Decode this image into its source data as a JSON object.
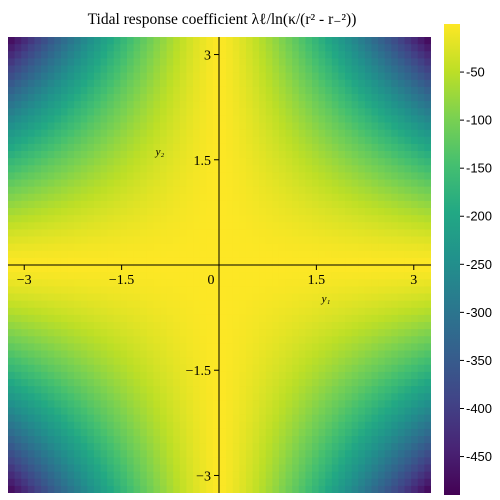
{
  "chart_data": {
    "type": "heatmap",
    "title": "Tidal response coefficient λℓ/ln(κ/(r² - r₋²))",
    "xlabel": "y₁",
    "ylabel": "y₂",
    "xlim": [
      -3.25,
      3.25
    ],
    "ylim": [
      -3.25,
      3.25
    ],
    "x_ticks": [
      -3,
      -1.5,
      0,
      1.5,
      3
    ],
    "x_tick_labels": [
      "−3",
      "−1.5",
      "0",
      "1.5",
      "3"
    ],
    "y_ticks": [
      3,
      1.5,
      -1.5,
      -3
    ],
    "y_tick_labels": [
      "3",
      "1.5",
      "−1.5",
      "−3"
    ],
    "colorbar": {
      "colormap": "viridis",
      "range": [
        -490,
        0
      ],
      "ticks": [
        -50,
        -100,
        -150,
        -200,
        -250,
        -300,
        -350,
        -400,
        -450
      ],
      "tick_labels": [
        "-50",
        "-100",
        "-150",
        "-200",
        "-250",
        "-300",
        "-350",
        "-400",
        "-450"
      ]
    },
    "field_description": "symmetric in y1 and y2; near 0 along both axes, decreasing toward about -490 at the four corners",
    "sampled_values": [
      {
        "y1": 0,
        "y2": 0,
        "value": 0
      },
      {
        "y1": 1.5,
        "y2": 1.5,
        "value": -50
      },
      {
        "y1": 3,
        "y2": 0,
        "value": -30
      },
      {
        "y1": 3,
        "y2": 1.5,
        "value": -100
      },
      {
        "y1": 3,
        "y2": 3,
        "value": -420
      },
      {
        "y1": 3.25,
        "y2": 3.25,
        "value": -490
      },
      {
        "y1": -3.25,
        "y2": 3.25,
        "value": -490
      },
      {
        "y1": -3.25,
        "y2": -3.25,
        "value": -490
      },
      {
        "y1": 3.25,
        "y2": -3.25,
        "value": -490
      }
    ],
    "grid": false,
    "legend": "colorbar-right"
  }
}
